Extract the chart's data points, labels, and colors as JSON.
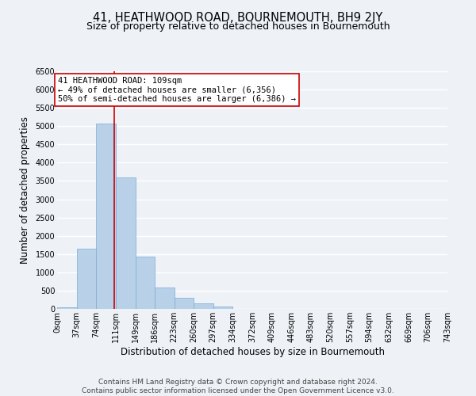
{
  "title": "41, HEATHWOOD ROAD, BOURNEMOUTH, BH9 2JY",
  "subtitle": "Size of property relative to detached houses in Bournemouth",
  "xlabel": "Distribution of detached houses by size in Bournemouth",
  "ylabel": "Number of detached properties",
  "footer_line1": "Contains HM Land Registry data © Crown copyright and database right 2024.",
  "footer_line2": "Contains public sector information licensed under the Open Government Licence v3.0.",
  "annotation_line1": "41 HEATHWOOD ROAD: 109sqm",
  "annotation_line2": "← 49% of detached houses are smaller (6,356)",
  "annotation_line3": "50% of semi-detached houses are larger (6,386) →",
  "bar_edges": [
    0,
    37,
    74,
    111,
    149,
    186,
    223,
    260,
    297,
    334,
    372,
    409,
    446,
    483,
    520,
    557,
    594,
    632,
    669,
    706,
    743
  ],
  "bar_heights": [
    50,
    1650,
    5080,
    3600,
    1430,
    590,
    300,
    150,
    70,
    10,
    5,
    0,
    0,
    0,
    0,
    0,
    0,
    0,
    0,
    0
  ],
  "bar_color": "#b8d0e8",
  "bar_edgecolor": "#7aadd4",
  "vline_x": 109,
  "vline_color": "#cc0000",
  "ylim": [
    0,
    6500
  ],
  "yticks": [
    0,
    500,
    1000,
    1500,
    2000,
    2500,
    3000,
    3500,
    4000,
    4500,
    5000,
    5500,
    6000,
    6500
  ],
  "annotation_box_color": "#ffffff",
  "annotation_box_edgecolor": "#cc0000",
  "background_color": "#eef2f7",
  "grid_color": "#ffffff",
  "title_fontsize": 10.5,
  "subtitle_fontsize": 9,
  "xlabel_fontsize": 8.5,
  "ylabel_fontsize": 8.5,
  "tick_fontsize": 7,
  "footer_fontsize": 6.5,
  "annotation_fontsize": 7.5
}
